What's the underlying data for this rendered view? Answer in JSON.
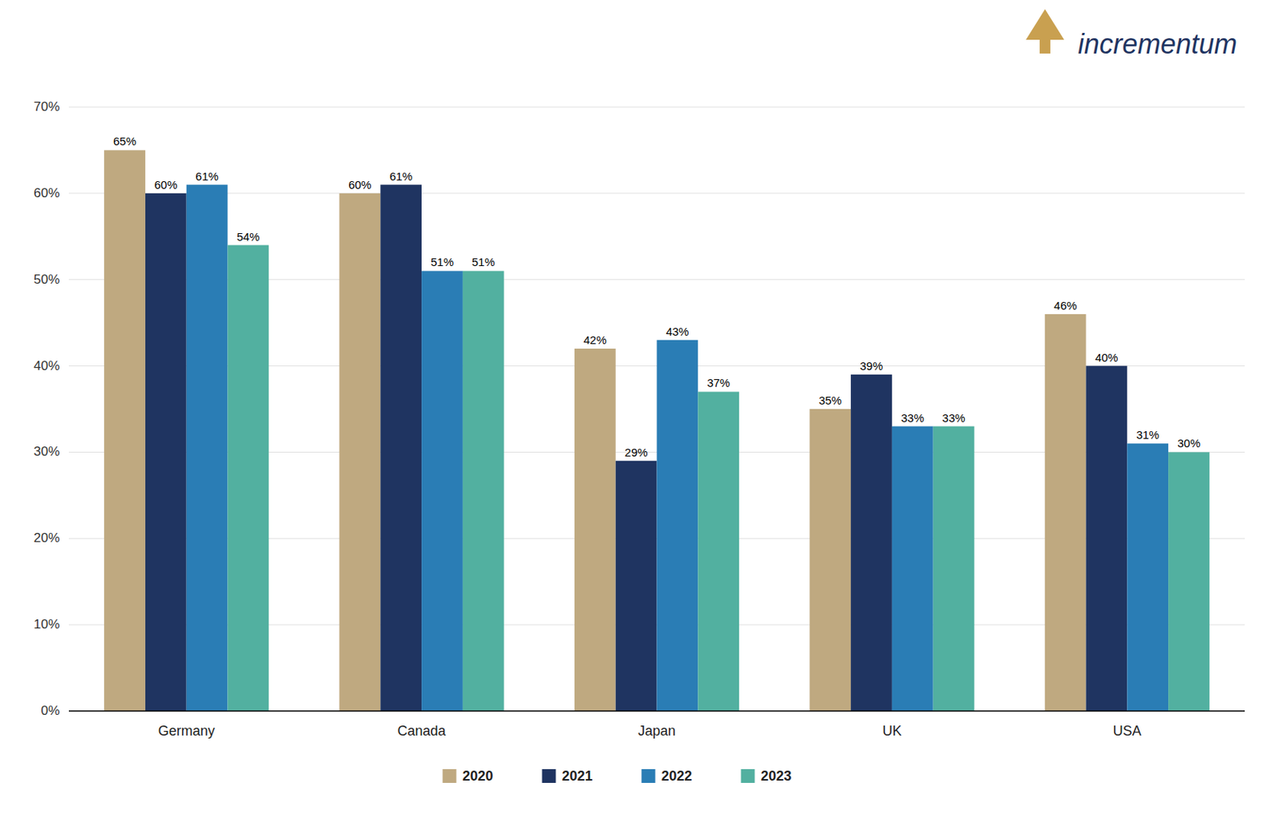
{
  "chart_data": {
    "type": "bar",
    "categories": [
      "Germany",
      "Canada",
      "Japan",
      "UK",
      "USA"
    ],
    "series": [
      {
        "name": "2020",
        "color": "#BFA980",
        "values": [
          0.65,
          0.6,
          0.42,
          0.35,
          0.46
        ],
        "value_labels": [
          "65%",
          "60%",
          "42%",
          "35%",
          "46%"
        ]
      },
      {
        "name": "2021",
        "color": "#1F3461",
        "values": [
          0.6,
          0.61,
          0.29,
          0.39,
          0.4
        ],
        "value_labels": [
          "60%",
          "61%",
          "29%",
          "39%",
          "40%"
        ]
      },
      {
        "name": "2022",
        "color": "#2A7DB5",
        "values": [
          0.61,
          0.51,
          0.43,
          0.33,
          0.31
        ],
        "value_labels": [
          "61%",
          "51%",
          "43%",
          "33%",
          "31%"
        ]
      },
      {
        "name": "2023",
        "color": "#52B0A0",
        "values": [
          0.54,
          0.51,
          0.37,
          0.33,
          0.3
        ],
        "value_labels": [
          "54%",
          "51%",
          "37%",
          "33%",
          "30%"
        ]
      }
    ],
    "ylim": [
      0,
      0.7
    ],
    "yticks": [
      {
        "value": 0.0,
        "label": "0%"
      },
      {
        "value": 0.1,
        "label": "10%"
      },
      {
        "value": 0.2,
        "label": "20%"
      },
      {
        "value": 0.3,
        "label": "30%"
      },
      {
        "value": 0.4,
        "label": "40%"
      },
      {
        "value": 0.5,
        "label": "50%"
      },
      {
        "value": 0.6,
        "label": "60%"
      },
      {
        "value": 0.7,
        "label": "70%"
      }
    ],
    "grid": true,
    "legend": "bottom",
    "data_labels": true,
    "annotations": [
      {
        "text": "incrementum",
        "color": "#1F3461"
      }
    ]
  }
}
